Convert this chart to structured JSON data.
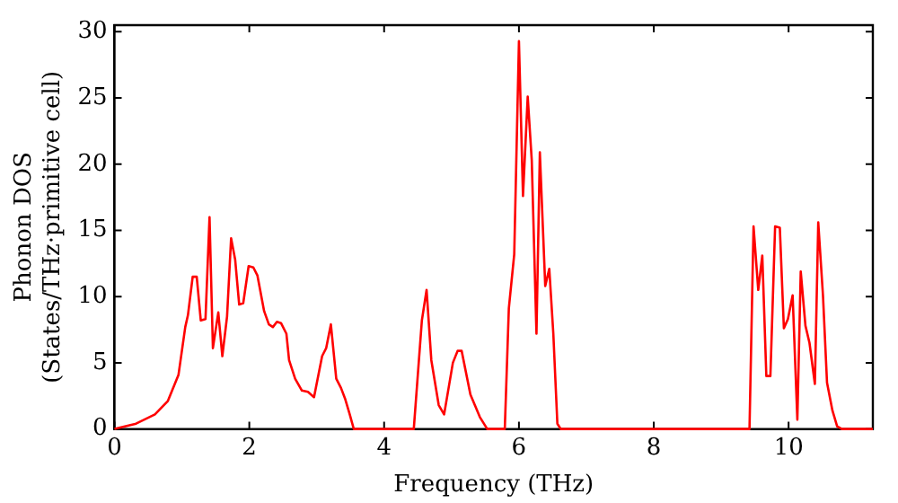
{
  "chart_data": {
    "type": "line",
    "xlabel": "Frequency (THz)",
    "ylabel": "Phonon DOS\n(States/THz·primitive cell)",
    "xlim": [
      0,
      11.25
    ],
    "ylim": [
      0,
      30.5
    ],
    "xticks": [
      0,
      2,
      4,
      6,
      8,
      10
    ],
    "yticks": [
      0,
      5,
      10,
      15,
      20,
      25,
      30
    ],
    "grid": false,
    "legend": false,
    "marker": "none",
    "line_style": "solid",
    "x": [
      0,
      0.32,
      0.6,
      0.79,
      0.95,
      1.05,
      1.09,
      1.16,
      1.22,
      1.28,
      1.35,
      1.41,
      1.46,
      1.54,
      1.6,
      1.67,
      1.73,
      1.79,
      1.85,
      1.91,
      1.99,
      2.06,
      2.12,
      2.22,
      2.29,
      2.35,
      2.41,
      2.47,
      2.55,
      2.59,
      2.68,
      2.78,
      2.87,
      2.96,
      3.08,
      3.14,
      3.21,
      3.29,
      3.36,
      3.42,
      3.49,
      3.55,
      4.44,
      4.56,
      4.63,
      4.7,
      4.81,
      4.89,
      5.02,
      5.09,
      5.15,
      5.28,
      5.42,
      5.53,
      5.79,
      5.85,
      5.93,
      6.0,
      6.06,
      6.13,
      6.19,
      6.26,
      6.31,
      6.39,
      6.45,
      6.51,
      6.57,
      6.62,
      9.42,
      9.48,
      9.55,
      9.61,
      9.67,
      9.73,
      9.8,
      9.87,
      9.93,
      9.99,
      10.06,
      10.13,
      10.18,
      10.25,
      10.31,
      10.39,
      10.44,
      10.51,
      10.57,
      10.65,
      10.72,
      10.79,
      11.25
    ],
    "series": [
      {
        "color": "#ff0000",
        "values": [
          0,
          0.4,
          1.1,
          2.1,
          4.1,
          7.7,
          8.6,
          11.5,
          11.5,
          8.2,
          8.3,
          16.0,
          6.1,
          8.8,
          5.5,
          8.5,
          14.4,
          12.8,
          9.4,
          9.5,
          12.3,
          12.2,
          11.6,
          8.9,
          7.9,
          7.7,
          8.1,
          8.0,
          7.2,
          5.2,
          3.8,
          2.9,
          2.8,
          2.4,
          5.5,
          6.1,
          7.9,
          3.8,
          3.1,
          2.3,
          1.1,
          0,
          0,
          8.2,
          10.5,
          5.2,
          1.8,
          1.1,
          5.0,
          5.9,
          5.9,
          2.6,
          0.9,
          0,
          0,
          9.1,
          13.2,
          29.3,
          17.6,
          25.1,
          20.3,
          7.2,
          20.9,
          10.8,
          12.1,
          7.2,
          0.4,
          0,
          0,
          15.3,
          10.5,
          13.1,
          4.0,
          4.0,
          15.3,
          15.2,
          7.6,
          8.3,
          10.1,
          0.7,
          11.9,
          7.8,
          6.5,
          3.4,
          15.6,
          10.1,
          3.5,
          1.4,
          0.2,
          0,
          0
        ]
      }
    ]
  }
}
